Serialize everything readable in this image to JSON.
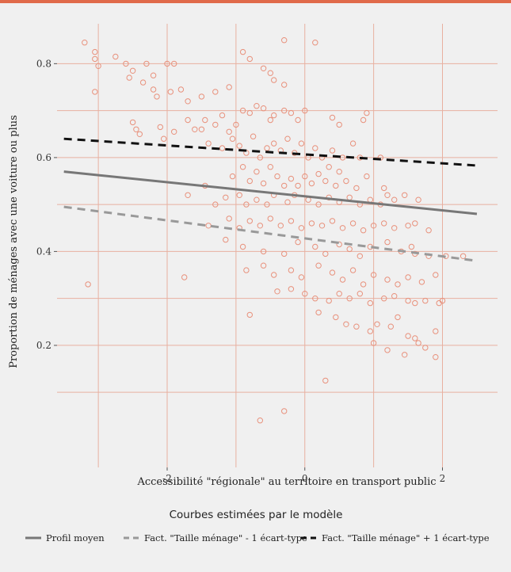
{
  "chart_data": {
    "type": "scatter",
    "title": "",
    "xlabel": "Accessibilité \"régionale\" au territoire en transport public",
    "ylabel": "Proportion de ménages avec une voiture ou plus",
    "xlim": [
      -3.6,
      2.8
    ],
    "ylim": [
      -0.06,
      0.885
    ],
    "x_ticks": [
      -2,
      0,
      2
    ],
    "x_tick_labels": [
      "-2",
      "0",
      "2"
    ],
    "y_ticks": [
      0.2,
      0.4,
      0.6,
      0.8
    ],
    "y_tick_labels": [
      "0.2",
      "0.4",
      "0.6",
      "0.8"
    ],
    "grid": true,
    "legend": {
      "title": "Courbes estimées par le modèle",
      "placement": "bottom"
    },
    "points": {
      "color": "#e8917c",
      "marker": "hollow circle",
      "data": [
        [
          -3.2,
          0.845
        ],
        [
          -3.05,
          0.825
        ],
        [
          -3.05,
          0.81
        ],
        [
          -3.0,
          0.795
        ],
        [
          -3.05,
          0.74
        ],
        [
          -3.15,
          0.33
        ],
        [
          -2.75,
          0.815
        ],
        [
          -2.6,
          0.8
        ],
        [
          -2.5,
          0.785
        ],
        [
          -2.3,
          0.8
        ],
        [
          -2.2,
          0.775
        ],
        [
          -2.0,
          0.8
        ],
        [
          -1.9,
          0.8
        ],
        [
          -2.55,
          0.77
        ],
        [
          -2.35,
          0.76
        ],
        [
          -2.2,
          0.745
        ],
        [
          -2.15,
          0.73
        ],
        [
          -1.95,
          0.74
        ],
        [
          -1.8,
          0.745
        ],
        [
          -1.7,
          0.72
        ],
        [
          -1.5,
          0.73
        ],
        [
          -1.3,
          0.74
        ],
        [
          -1.1,
          0.75
        ],
        [
          -0.9,
          0.825
        ],
        [
          -0.8,
          0.81
        ],
        [
          -0.6,
          0.79
        ],
        [
          -0.5,
          0.78
        ],
        [
          -0.45,
          0.765
        ],
        [
          -0.3,
          0.85
        ],
        [
          -0.3,
          0.755
        ],
        [
          0.15,
          0.845
        ],
        [
          -2.5,
          0.675
        ],
        [
          -2.45,
          0.66
        ],
        [
          -2.4,
          0.65
        ],
        [
          -2.1,
          0.665
        ],
        [
          -2.05,
          0.64
        ],
        [
          -1.9,
          0.655
        ],
        [
          -1.7,
          0.68
        ],
        [
          -1.6,
          0.66
        ],
        [
          -1.5,
          0.66
        ],
        [
          -1.45,
          0.68
        ],
        [
          -1.3,
          0.67
        ],
        [
          -1.2,
          0.69
        ],
        [
          -1.1,
          0.655
        ],
        [
          -1.0,
          0.67
        ],
        [
          -0.9,
          0.7
        ],
        [
          -0.8,
          0.695
        ],
        [
          -0.7,
          0.71
        ],
        [
          -0.6,
          0.705
        ],
        [
          -0.5,
          0.68
        ],
        [
          -0.45,
          0.69
        ],
        [
          -0.3,
          0.7
        ],
        [
          -0.2,
          0.695
        ],
        [
          -0.1,
          0.68
        ],
        [
          0.0,
          0.7
        ],
        [
          0.4,
          0.685
        ],
        [
          0.5,
          0.67
        ],
        [
          0.9,
          0.695
        ],
        [
          0.85,
          0.68
        ],
        [
          -1.4,
          0.63
        ],
        [
          -1.2,
          0.62
        ],
        [
          -1.05,
          0.64
        ],
        [
          -0.95,
          0.625
        ],
        [
          -0.85,
          0.61
        ],
        [
          -0.75,
          0.645
        ],
        [
          -0.65,
          0.6
        ],
        [
          -0.55,
          0.62
        ],
        [
          -0.45,
          0.63
        ],
        [
          -0.35,
          0.615
        ],
        [
          -0.25,
          0.64
        ],
        [
          -0.15,
          0.61
        ],
        [
          -0.05,
          0.63
        ],
        [
          0.05,
          0.6
        ],
        [
          0.15,
          0.62
        ],
        [
          0.25,
          0.6
        ],
        [
          0.4,
          0.615
        ],
        [
          0.55,
          0.6
        ],
        [
          0.7,
          0.63
        ],
        [
          0.8,
          0.6
        ],
        [
          1.1,
          0.6
        ],
        [
          -0.9,
          0.58
        ],
        [
          -0.7,
          0.57
        ],
        [
          -0.5,
          0.58
        ],
        [
          -1.05,
          0.56
        ],
        [
          -0.8,
          0.55
        ],
        [
          -0.6,
          0.545
        ],
        [
          -0.4,
          0.56
        ],
        [
          -0.3,
          0.54
        ],
        [
          -0.2,
          0.555
        ],
        [
          -0.1,
          0.54
        ],
        [
          0.0,
          0.56
        ],
        [
          0.1,
          0.545
        ],
        [
          0.2,
          0.565
        ],
        [
          0.3,
          0.55
        ],
        [
          0.45,
          0.54
        ],
        [
          0.6,
          0.55
        ],
        [
          0.75,
          0.535
        ],
        [
          0.9,
          0.56
        ],
        [
          1.15,
          0.535
        ],
        [
          0.5,
          0.57
        ],
        [
          0.35,
          0.58
        ],
        [
          -1.7,
          0.52
        ],
        [
          -1.45,
          0.54
        ],
        [
          -1.3,
          0.5
        ],
        [
          -1.15,
          0.515
        ],
        [
          -0.95,
          0.52
        ],
        [
          -0.85,
          0.5
        ],
        [
          -0.7,
          0.51
        ],
        [
          -0.55,
          0.5
        ],
        [
          -0.45,
          0.52
        ],
        [
          -0.25,
          0.505
        ],
        [
          -0.15,
          0.52
        ],
        [
          0.05,
          0.51
        ],
        [
          0.2,
          0.5
        ],
        [
          0.35,
          0.515
        ],
        [
          0.5,
          0.505
        ],
        [
          0.65,
          0.515
        ],
        [
          0.8,
          0.5
        ],
        [
          0.95,
          0.51
        ],
        [
          1.1,
          0.5
        ],
        [
          1.3,
          0.51
        ],
        [
          1.45,
          0.52
        ],
        [
          1.65,
          0.51
        ],
        [
          1.2,
          0.52
        ],
        [
          -1.4,
          0.455
        ],
        [
          -1.1,
          0.47
        ],
        [
          -0.95,
          0.45
        ],
        [
          -0.8,
          0.465
        ],
        [
          -0.65,
          0.455
        ],
        [
          -0.5,
          0.47
        ],
        [
          -0.35,
          0.455
        ],
        [
          -0.2,
          0.465
        ],
        [
          -0.05,
          0.45
        ],
        [
          0.1,
          0.46
        ],
        [
          0.25,
          0.455
        ],
        [
          0.4,
          0.465
        ],
        [
          0.55,
          0.45
        ],
        [
          0.7,
          0.46
        ],
        [
          0.85,
          0.445
        ],
        [
          1.0,
          0.455
        ],
        [
          1.15,
          0.46
        ],
        [
          1.3,
          0.45
        ],
        [
          1.5,
          0.455
        ],
        [
          1.6,
          0.46
        ],
        [
          1.8,
          0.445
        ],
        [
          -1.15,
          0.425
        ],
        [
          -0.9,
          0.41
        ],
        [
          -0.6,
          0.4
        ],
        [
          -0.3,
          0.395
        ],
        [
          -0.1,
          0.42
        ],
        [
          0.15,
          0.41
        ],
        [
          0.3,
          0.395
        ],
        [
          0.5,
          0.415
        ],
        [
          0.65,
          0.405
        ],
        [
          0.8,
          0.39
        ],
        [
          0.95,
          0.41
        ],
        [
          1.2,
          0.42
        ],
        [
          1.4,
          0.4
        ],
        [
          1.55,
          0.41
        ],
        [
          1.8,
          0.39
        ],
        [
          2.05,
          0.39
        ],
        [
          2.3,
          0.39
        ],
        [
          1.6,
          0.395
        ],
        [
          -0.85,
          0.36
        ],
        [
          -0.6,
          0.37
        ],
        [
          -0.45,
          0.35
        ],
        [
          -0.2,
          0.36
        ],
        [
          -0.05,
          0.345
        ],
        [
          0.2,
          0.37
        ],
        [
          0.4,
          0.355
        ],
        [
          0.55,
          0.34
        ],
        [
          0.7,
          0.36
        ],
        [
          0.85,
          0.33
        ],
        [
          1.0,
          0.35
        ],
        [
          1.2,
          0.34
        ],
        [
          1.35,
          0.33
        ],
        [
          1.5,
          0.345
        ],
        [
          1.7,
          0.335
        ],
        [
          1.9,
          0.35
        ],
        [
          -1.75,
          0.345
        ],
        [
          -0.4,
          0.315
        ],
        [
          -0.2,
          0.32
        ],
        [
          0.0,
          0.31
        ],
        [
          0.15,
          0.3
        ],
        [
          0.35,
          0.295
        ],
        [
          0.5,
          0.31
        ],
        [
          0.65,
          0.3
        ],
        [
          0.8,
          0.31
        ],
        [
          0.95,
          0.29
        ],
        [
          1.15,
          0.3
        ],
        [
          1.3,
          0.305
        ],
        [
          1.5,
          0.295
        ],
        [
          1.6,
          0.29
        ],
        [
          1.75,
          0.295
        ],
        [
          1.95,
          0.29
        ],
        [
          2.0,
          0.295
        ],
        [
          0.2,
          0.27
        ],
        [
          0.45,
          0.26
        ],
        [
          0.6,
          0.245
        ],
        [
          0.75,
          0.24
        ],
        [
          0.95,
          0.23
        ],
        [
          1.05,
          0.245
        ],
        [
          1.25,
          0.24
        ],
        [
          1.35,
          0.26
        ],
        [
          1.5,
          0.22
        ],
        [
          1.6,
          0.215
        ],
        [
          1.65,
          0.205
        ],
        [
          1.9,
          0.23
        ],
        [
          -0.8,
          0.265
        ],
        [
          1.0,
          0.205
        ],
        [
          1.2,
          0.19
        ],
        [
          1.45,
          0.18
        ],
        [
          1.75,
          0.195
        ],
        [
          1.9,
          0.175
        ],
        [
          0.3,
          0.125
        ],
        [
          -0.65,
          0.04
        ],
        [
          -0.3,
          0.06
        ]
      ]
    },
    "series": [
      {
        "name": "Profil moyen",
        "style": "solid",
        "color": "#777777",
        "x": [
          -3.5,
          2.5
        ],
        "y": [
          0.57,
          0.48
        ]
      },
      {
        "name": "Fact. \"Taille ménage\" - 1 écart-type",
        "style": "dashed",
        "color": "#999999",
        "x": [
          -3.5,
          2.5
        ],
        "y": [
          0.495,
          0.38
        ]
      },
      {
        "name": "Fact. \"Taille ménage\" + 1 écart-type",
        "style": "dashed",
        "color": "#111111",
        "x": [
          -3.5,
          2.5
        ],
        "y": [
          0.64,
          0.583
        ]
      }
    ]
  }
}
